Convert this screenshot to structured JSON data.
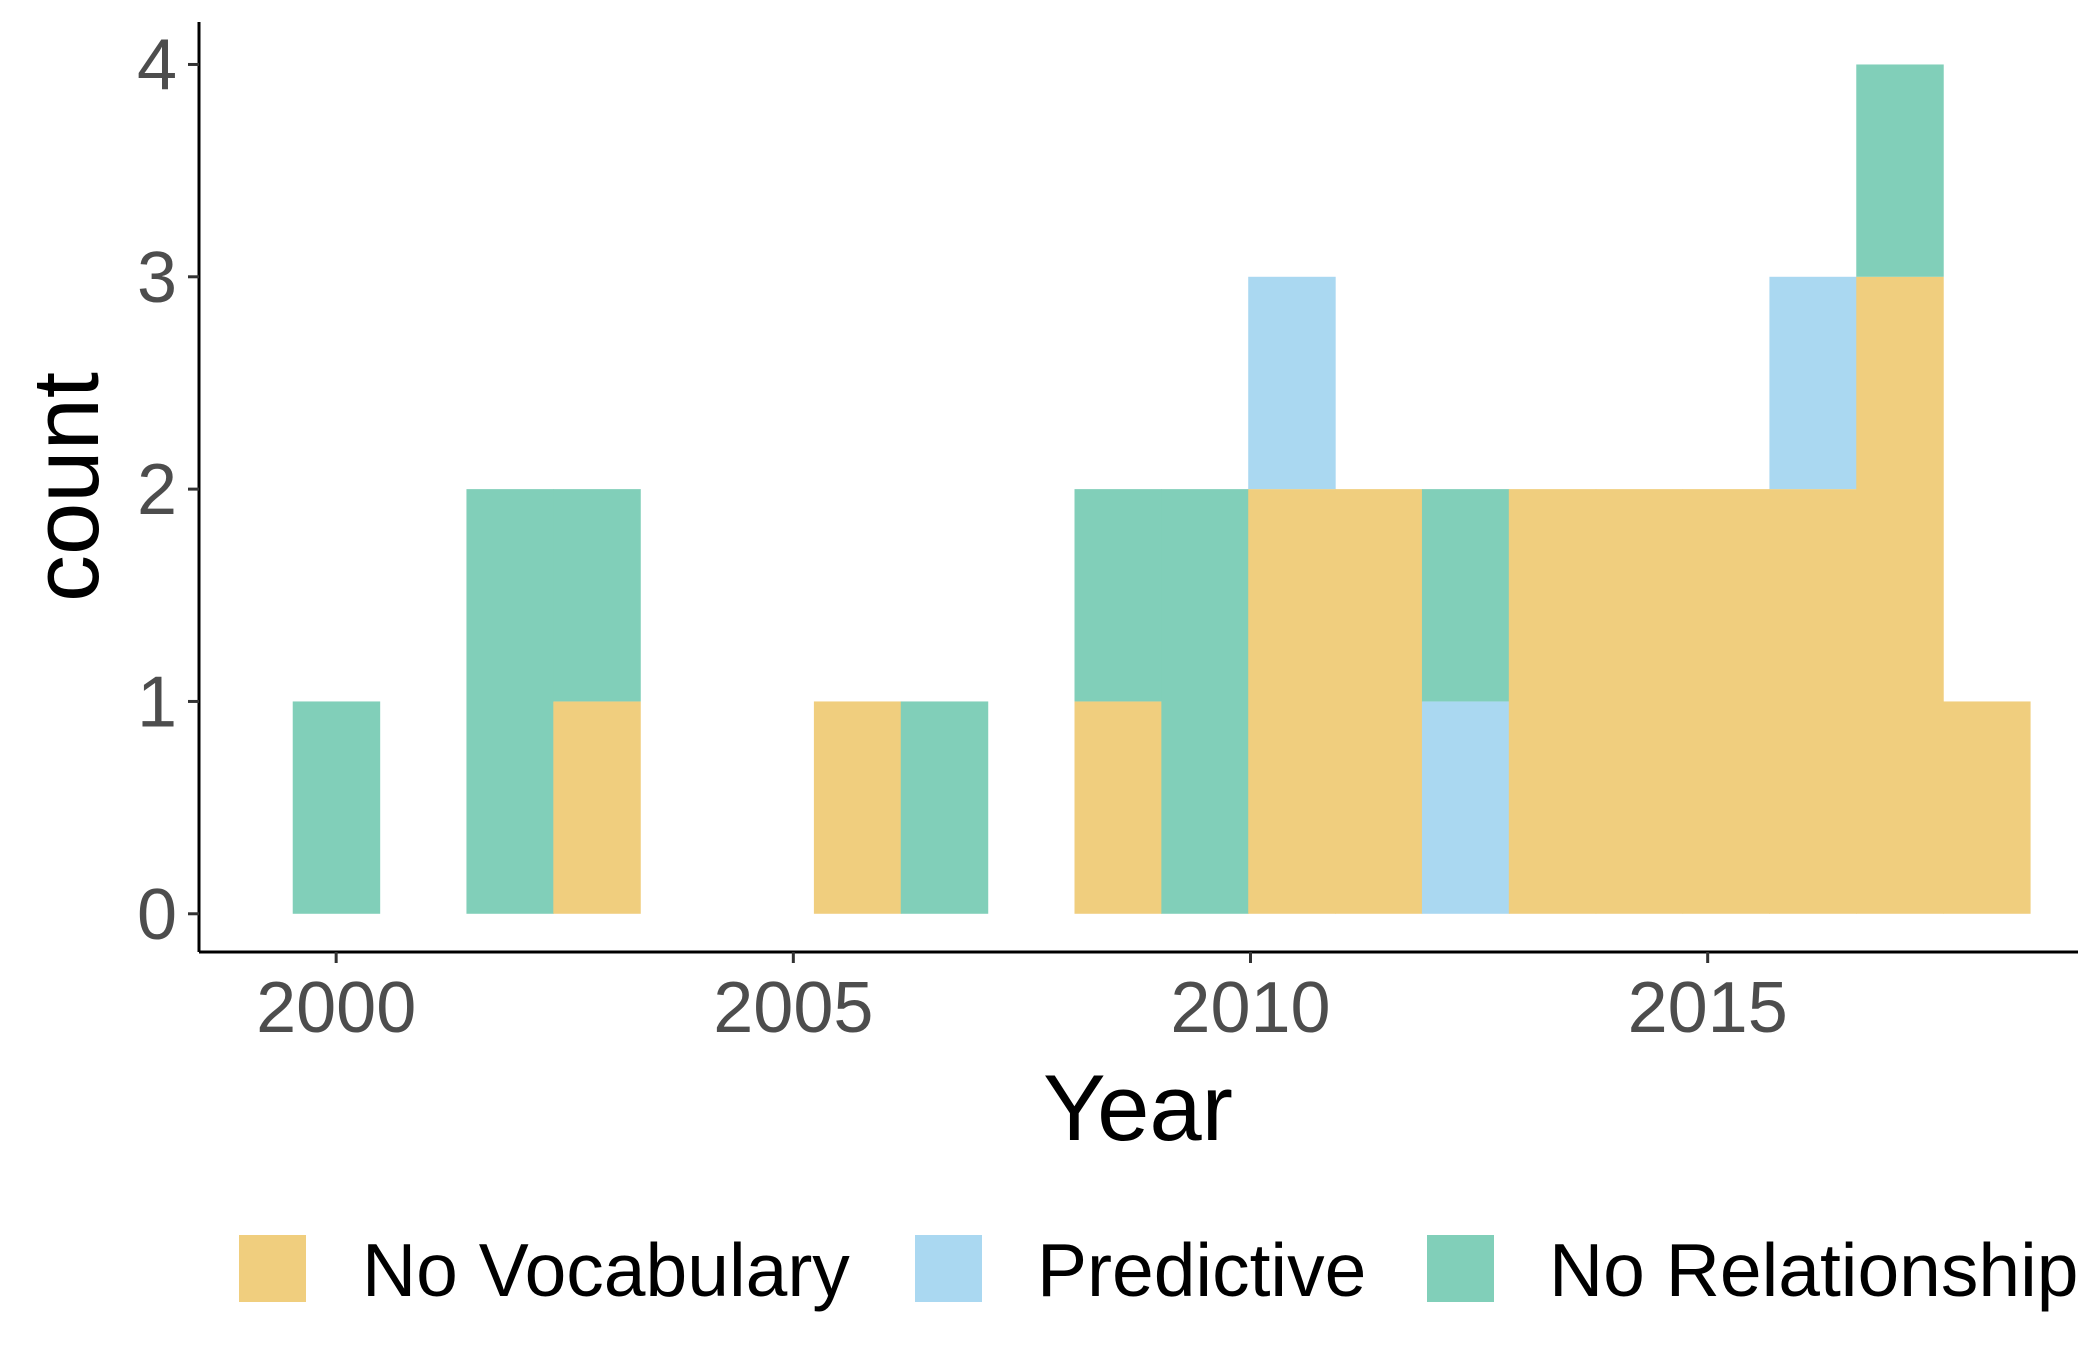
{
  "chart_data": {
    "type": "bar",
    "stacked": true,
    "histogram": true,
    "bin_width": 0.95,
    "xlabel": "Year",
    "ylabel": "count",
    "xlim": [
      1998.5,
      2019.05
    ],
    "ylim": [
      -0.18,
      4.2
    ],
    "x_ticks": [
      2000,
      2005,
      2010,
      2015
    ],
    "y_ticks": [
      0,
      1,
      2,
      3,
      4
    ],
    "x_tick_labels": [
      "2000",
      "2005",
      "2010",
      "2015"
    ],
    "y_tick_labels": [
      "0",
      "1",
      "2",
      "3",
      "4"
    ],
    "grid": false,
    "legend_position": "bottom",
    "bin_centers": [
      2000.0,
      2001.9,
      2002.85,
      2005.7,
      2006.65,
      2008.55,
      2009.5,
      2010.45,
      2011.4,
      2012.35,
      2013.3,
      2014.25,
      2015.2,
      2016.15,
      2017.1,
      2018.05
    ],
    "series": [
      {
        "name": "No Vocabulary",
        "color": "#F0CE7E",
        "values": [
          0,
          0,
          1,
          1,
          0,
          1,
          0,
          2,
          2,
          0,
          2,
          2,
          2,
          2,
          3,
          1
        ]
      },
      {
        "name": "Predictive",
        "color": "#AAD8F1",
        "values": [
          0,
          0,
          0,
          0,
          0,
          0,
          0,
          1,
          0,
          1,
          0,
          0,
          0,
          1,
          0,
          0
        ]
      },
      {
        "name": "No Relationship",
        "color": "#81CFB9",
        "values": [
          1,
          2,
          1,
          0,
          1,
          1,
          2,
          0,
          0,
          1,
          0,
          0,
          0,
          0,
          1,
          0
        ]
      }
    ]
  }
}
